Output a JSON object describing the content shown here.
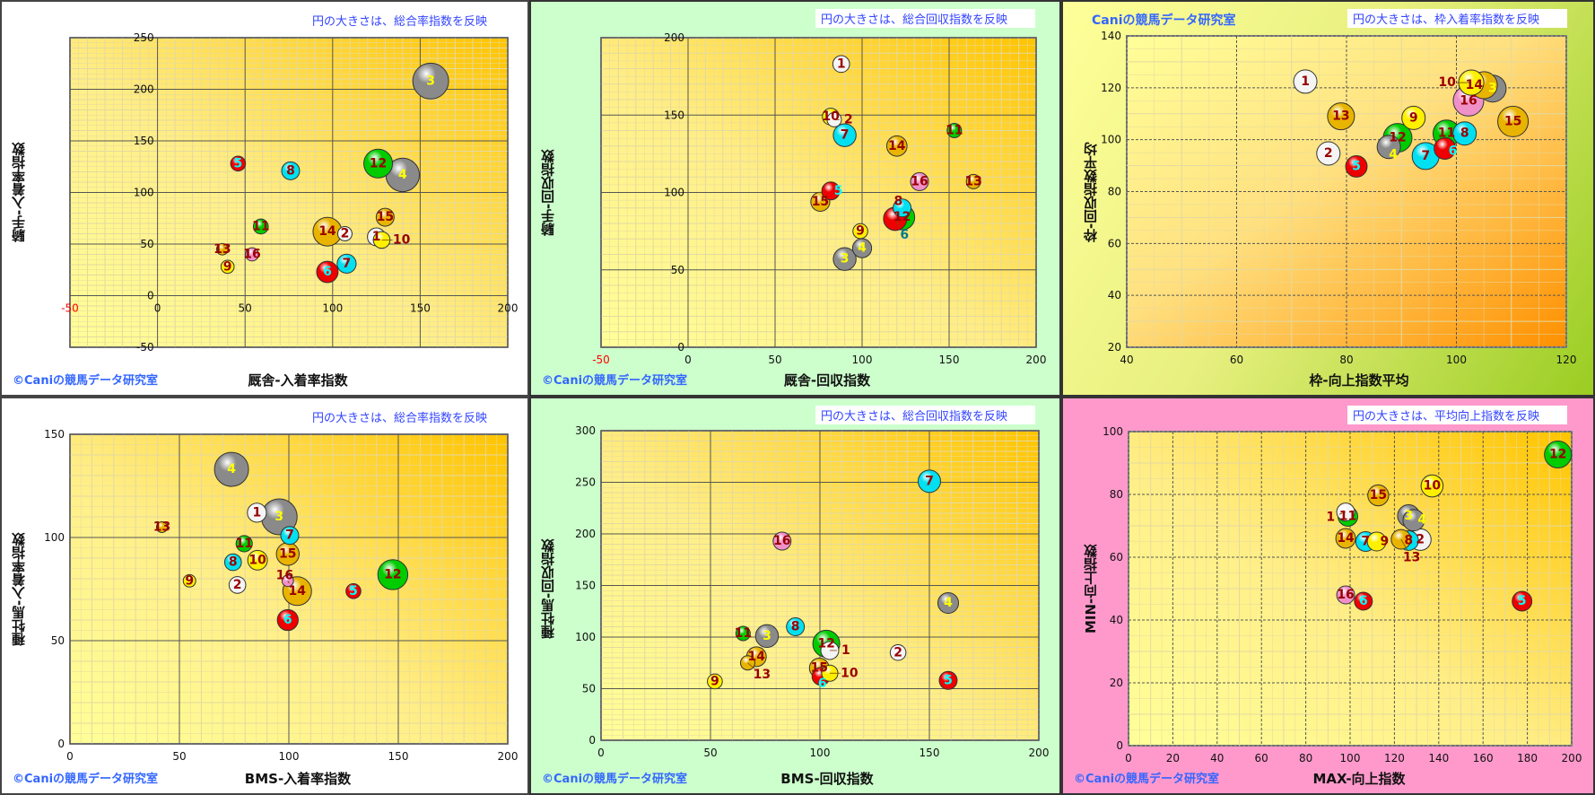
{
  "horse_colors": {
    "1": "#f4f4f4",
    "2": "#f4f4f4",
    "3": "#8a8a8a",
    "4": "#8a8a8a",
    "5": "#ee0000",
    "6": "#ee0000",
    "7": "#00e0f0",
    "8": "#00e0f0",
    "9": "#fff000",
    "10": "#fff000",
    "11": "#00cc00",
    "12": "#00cc00",
    "13": "#e8b400",
    "14": "#e8b400",
    "15": "#e8b400",
    "16": "#f090c8"
  },
  "label_colors": {
    "default": "#990000",
    "3": "#ffff00",
    "4": "#ffff00",
    "5": "#00ffff",
    "6": "#00ffff"
  },
  "chart_data": [
    {
      "type": "bubble",
      "credit": "©Caniの競馬データ研究室",
      "size_note": "円の大きさは、総合率指数を反映",
      "xlabel": "厩舎-入着率指数",
      "ylabel": "騎手-入着率指数",
      "xlim": [
        -50,
        200
      ],
      "ylim": [
        -50,
        250
      ],
      "xticks": [
        -50,
        0,
        50,
        100,
        150,
        200
      ],
      "yticks": [
        -50,
        0,
        50,
        100,
        150,
        200,
        250
      ],
      "red_xticks": [
        -50
      ],
      "x_minor": 10,
      "y_minor": 10,
      "major": 50,
      "columns": [
        "horse",
        "x",
        "y",
        "size"
      ],
      "points": [
        [
          "1",
          125,
          57,
          39
        ],
        [
          "2",
          107,
          60,
          25
        ],
        [
          "3",
          156,
          208,
          156
        ],
        [
          "4",
          140,
          117,
          136
        ],
        [
          "5",
          46,
          128,
          27
        ],
        [
          "6",
          97,
          23,
          56
        ],
        [
          "7",
          108,
          31,
          44
        ],
        [
          "8",
          76,
          121,
          39
        ],
        [
          "9",
          40,
          28,
          21
        ],
        [
          "10",
          128,
          54,
          34
        ],
        [
          "11",
          59,
          67,
          27
        ],
        [
          "12",
          126,
          128,
          100
        ],
        [
          "13",
          37,
          45,
          16
        ],
        [
          "14",
          97,
          62,
          100
        ],
        [
          "15",
          130,
          76,
          39
        ],
        [
          "16",
          54,
          40,
          21
        ]
      ]
    },
    {
      "type": "bubble",
      "credit": "©Caniの競馬データ研究室",
      "size_note": "円の大きさは、総合回収指数を反映",
      "xlabel": "厩舎-回収指数",
      "ylabel": "騎手-回収指数",
      "xlim": [
        -50,
        200
      ],
      "ylim": [
        0,
        200
      ],
      "xticks": [
        -50,
        0,
        50,
        100,
        150,
        200
      ],
      "yticks": [
        0,
        50,
        100,
        150,
        200
      ],
      "red_xticks": [
        -50
      ],
      "x_minor": 10,
      "y_minor": 10,
      "major": 50,
      "columns": [
        "horse",
        "x",
        "y",
        "size"
      ],
      "points": [
        [
          "1",
          88,
          183,
          34
        ],
        [
          "2",
          84,
          147,
          25
        ],
        [
          "3",
          90,
          57,
          63
        ],
        [
          "4",
          100,
          64,
          44
        ],
        [
          "5",
          82,
          101,
          39
        ],
        [
          "6",
          119,
          83,
          66
        ],
        [
          "7",
          90,
          137,
          63
        ],
        [
          "8",
          123,
          90,
          39
        ],
        [
          "9",
          99,
          75,
          27
        ],
        [
          "10",
          82,
          149,
          34
        ],
        [
          "11",
          153,
          140,
          25
        ],
        [
          "12",
          123,
          84,
          77
        ],
        [
          "13",
          164,
          107,
          25
        ],
        [
          "14",
          120,
          130,
          50
        ],
        [
          "15",
          76,
          94,
          44
        ],
        [
          "16",
          133,
          107,
          39
        ]
      ]
    },
    {
      "type": "bubble",
      "credit": "Caniの競馬データ研究室",
      "size_note": "円の大きさは、枠入着率指数を反映",
      "xlabel": "枠-向上指数平均",
      "ylabel": "枠-回収指数平均",
      "xlim": [
        40,
        120
      ],
      "ylim": [
        20,
        140
      ],
      "xticks": [
        40,
        60,
        80,
        100,
        120
      ],
      "yticks": [
        20,
        40,
        60,
        80,
        100,
        120,
        140
      ],
      "red_xticks": [],
      "x_minor": 10,
      "y_minor": 10,
      "major": 20,
      "columns": [
        "horse",
        "x",
        "y",
        "size"
      ],
      "points": [
        [
          "1",
          72.5,
          122.4,
          66
        ],
        [
          "2",
          76.7,
          94.7,
          66
        ],
        [
          "3",
          106.6,
          119.7,
          88
        ],
        [
          "4",
          87.7,
          97.2,
          66
        ],
        [
          "5",
          81.8,
          89.7,
          56
        ],
        [
          "6",
          97.9,
          96.6,
          56
        ],
        [
          "7",
          94.4,
          93.7,
          88
        ],
        [
          "8",
          101.5,
          102.4,
          66
        ],
        [
          "9",
          92.2,
          108.4,
          66
        ],
        [
          "10",
          102.7,
          122,
          77
        ],
        [
          "11",
          98.2,
          102.4,
          88
        ],
        [
          "12",
          89.3,
          100.7,
          100
        ],
        [
          "13",
          79,
          109,
          88
        ],
        [
          "14",
          105,
          121,
          88
        ],
        [
          "15",
          110.3,
          107,
          113
        ],
        [
          "16",
          102.2,
          115,
          113
        ]
      ]
    },
    {
      "type": "bubble",
      "credit": "©Caniの競馬データ研究室",
      "size_note": "円の大きさは、総合率指数を反映",
      "xlabel": "BMS-入着率指数",
      "ylabel": "種牡馬-入着率指数",
      "xlim": [
        0,
        200
      ],
      "ylim": [
        0,
        150
      ],
      "xticks": [
        0,
        50,
        100,
        150,
        200
      ],
      "yticks": [
        0,
        50,
        100,
        150
      ],
      "red_xticks": [],
      "x_minor": 10,
      "y_minor": 10,
      "major": 50,
      "columns": [
        "horse",
        "x",
        "y",
        "size"
      ],
      "points": [
        [
          "1",
          85.4,
          112,
          44
        ],
        [
          "2",
          76.5,
          77,
          34
        ],
        [
          "3",
          95.6,
          110,
          156
        ],
        [
          "4",
          73.8,
          133,
          141
        ],
        [
          "5",
          129.5,
          74,
          27
        ],
        [
          "6",
          99.5,
          60,
          53
        ],
        [
          "7",
          100.4,
          101,
          39
        ],
        [
          "8",
          74.5,
          88,
          34
        ],
        [
          "9",
          54.6,
          79,
          19
        ],
        [
          "10",
          85.7,
          89,
          47
        ],
        [
          "11",
          79.6,
          97,
          32
        ],
        [
          "12",
          147.5,
          82,
          109
        ],
        [
          "13",
          42,
          105,
          14
        ],
        [
          "14",
          103.8,
          74,
          100
        ],
        [
          "15",
          99.5,
          92,
          63
        ],
        [
          "16",
          99.5,
          79,
          16
        ]
      ]
    },
    {
      "type": "bubble",
      "credit": "©Caniの競馬データ研究室",
      "size_note": "円の大きさは、総合回収指数を反映",
      "xlabel": "BMS-回収指数",
      "ylabel": "種牡馬-回収指数",
      "xlim": [
        0,
        200
      ],
      "ylim": [
        0,
        300
      ],
      "xticks": [
        0,
        50,
        100,
        150,
        200
      ],
      "yticks": [
        0,
        50,
        100,
        150,
        200,
        250,
        300
      ],
      "red_xticks": [],
      "x_minor": 10,
      "y_minor": 10,
      "major": 50,
      "columns": [
        "horse",
        "x",
        "y",
        "size"
      ],
      "points": [
        [
          "1",
          104.5,
          87,
          39
        ],
        [
          "2",
          135.7,
          85,
          30
        ],
        [
          "3",
          75.8,
          101,
          63
        ],
        [
          "4",
          158.6,
          133,
          52
        ],
        [
          "5",
          158.6,
          58,
          39
        ],
        [
          "6",
          100.5,
          62,
          39
        ],
        [
          "7",
          150,
          251,
          61
        ],
        [
          "8",
          88.8,
          110,
          39
        ],
        [
          "9",
          52,
          57,
          27
        ],
        [
          "10",
          104.5,
          65,
          32
        ],
        [
          "11",
          64.9,
          103.5,
          25
        ],
        [
          "12",
          102.9,
          93.6,
          88
        ],
        [
          "13",
          67,
          75,
          25
        ],
        [
          "14",
          71,
          81,
          47
        ],
        [
          "15",
          99.7,
          70,
          47
        ],
        [
          "16",
          82.7,
          193,
          39
        ]
      ]
    },
    {
      "type": "bubble",
      "credit": "©Caniの競馬データ研究室",
      "size_note": "円の大きさは、平均向上指数を反映",
      "xlabel": "MAX-向上指数",
      "ylabel": "MIN-向上指数",
      "xlim": [
        0,
        200
      ],
      "ylim": [
        0,
        100
      ],
      "xticks": [
        0,
        20,
        40,
        60,
        80,
        100,
        120,
        140,
        160,
        180,
        200
      ],
      "yticks": [
        0,
        20,
        40,
        60,
        80,
        100
      ],
      "red_xticks": [],
      "x_minor": 10,
      "y_minor": 10,
      "major": 20,
      "columns": [
        "horse",
        "x",
        "y",
        "size"
      ],
      "points": [
        [
          "1",
          98,
          74.4,
          39
        ],
        [
          "2",
          131.7,
          65.6,
          56
        ],
        [
          "3",
          126.4,
          73.2,
          59
        ],
        [
          "4",
          128.7,
          71.8,
          56
        ],
        [
          "5",
          177.6,
          46,
          47
        ],
        [
          "6",
          106,
          46,
          39
        ],
        [
          "7",
          107,
          65,
          47
        ],
        [
          "8",
          126.4,
          65.3,
          47
        ],
        [
          "9",
          112,
          65,
          43
        ],
        [
          "10",
          137,
          82.7,
          59
        ],
        [
          "11",
          99,
          73,
          47
        ],
        [
          "12",
          193.8,
          92.7,
          88
        ],
        [
          "13",
          123,
          65.7,
          47
        ],
        [
          "14",
          98,
          66,
          47
        ],
        [
          "15",
          112.7,
          79.7,
          53
        ],
        [
          "16",
          98,
          48,
          39
        ]
      ]
    }
  ]
}
